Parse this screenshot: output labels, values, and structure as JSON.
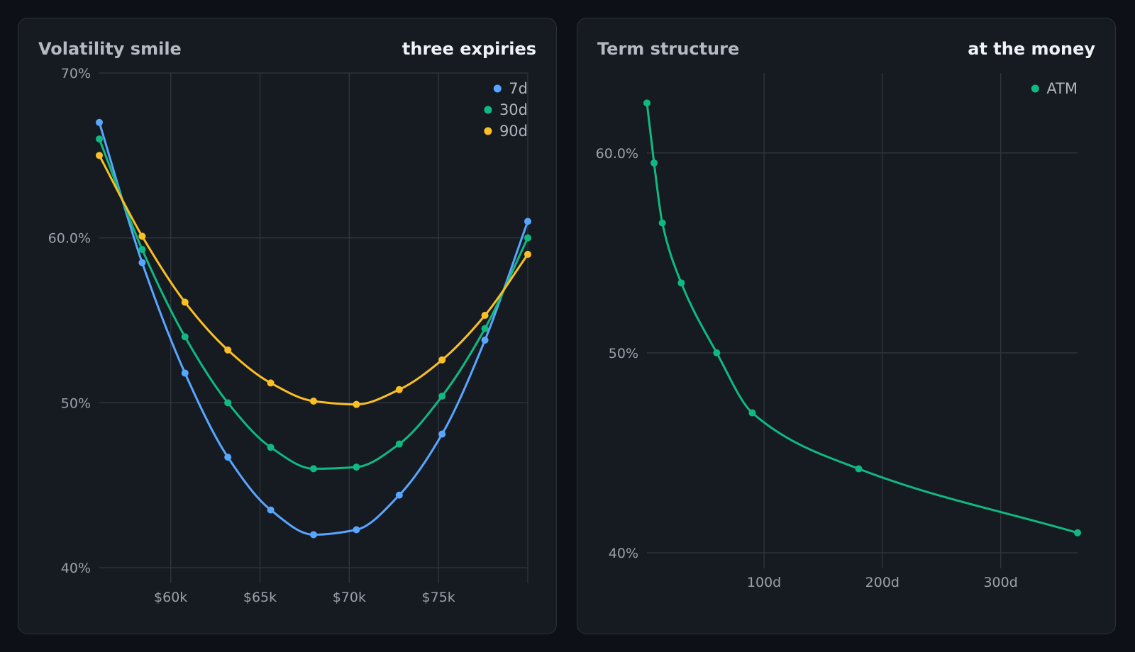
{
  "chart_data": [
    {
      "type": "line",
      "title": "Volatility smile",
      "subtitle": "three expiries",
      "xlabel": "",
      "ylabel": "",
      "x": [
        56000,
        58400,
        60800,
        63200,
        65600,
        68000,
        70400,
        72800,
        75200,
        77600,
        80000
      ],
      "xlim": [
        56000,
        80000
      ],
      "ylim": [
        40,
        70
      ],
      "yticks": [
        70,
        60,
        50,
        40
      ],
      "ytick_labels": [
        "70%",
        "60.0%",
        "50%",
        "40%"
      ],
      "xticks": [
        60000,
        65000,
        70000,
        75000
      ],
      "xtick_labels": [
        "$60k",
        "$65k",
        "$70k",
        "$75k"
      ],
      "grid": true,
      "legend": "top-right",
      "series": [
        {
          "name": "7d",
          "color": "#58a6ff",
          "values": [
            67.0,
            58.5,
            51.8,
            46.7,
            43.5,
            42.0,
            42.3,
            44.4,
            48.1,
            53.8,
            61.0
          ]
        },
        {
          "name": "30d",
          "color": "#10b981",
          "values": [
            66.0,
            59.3,
            54.0,
            50.0,
            47.3,
            46.0,
            46.1,
            47.5,
            50.4,
            54.5,
            60.0
          ]
        },
        {
          "name": "90d",
          "color": "#fbbf24",
          "values": [
            65.0,
            60.1,
            56.1,
            53.2,
            51.2,
            50.1,
            49.9,
            50.8,
            52.6,
            55.3,
            59.0
          ]
        }
      ]
    },
    {
      "type": "line",
      "title": "Term structure",
      "subtitle": "at the money",
      "xlabel": "",
      "ylabel": "",
      "x": [
        1,
        7,
        14,
        30,
        60,
        90,
        180,
        365
      ],
      "xlim": [
        1,
        365
      ],
      "ylim": [
        40,
        64
      ],
      "yticks": [
        60,
        50,
        40
      ],
      "ytick_labels": [
        "60.0%",
        "50%",
        "40%"
      ],
      "xticks": [
        100,
        200,
        300
      ],
      "xtick_labels": [
        "100d",
        "200d",
        "300d"
      ],
      "grid": true,
      "legend": "top-right",
      "series": [
        {
          "name": "ATM",
          "color": "#10b981",
          "values": [
            62.5,
            59.5,
            56.5,
            53.5,
            50.0,
            47.0,
            44.2,
            41.0
          ]
        }
      ]
    }
  ]
}
